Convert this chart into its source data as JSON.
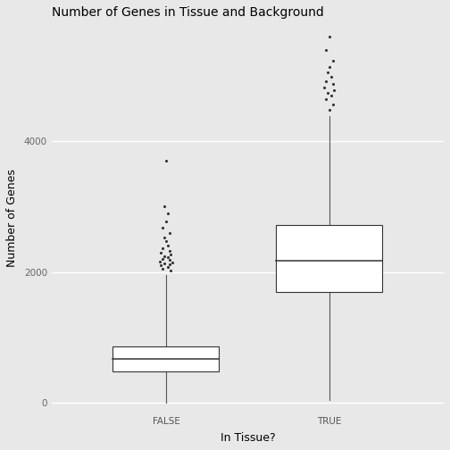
{
  "title": "Number of Genes in Tissue and Background",
  "xlabel": "In Tissue?",
  "ylabel": "Number of Genes",
  "categories": [
    "FALSE",
    "TRUE"
  ],
  "background_color": "#e8e8e8",
  "plot_bg_color": "#e8e8e8",
  "box_color": "white",
  "box_edge_color": "#333333",
  "median_color": "#333333",
  "whisker_color": "#555555",
  "outlier_color": "#333333",
  "grid_color": "white",
  "yticks": [
    0,
    2000,
    4000
  ],
  "ylim": [
    -150,
    5800
  ],
  "xlim": [
    0.3,
    2.7
  ],
  "false_box": {
    "q1": 480,
    "median": 670,
    "q3": 870,
    "whisker_low": 5,
    "whisker_high": 1950,
    "outliers_y": [
      2020,
      2050,
      2080,
      2100,
      2115,
      2130,
      2145,
      2165,
      2185,
      2205,
      2225,
      2245,
      2265,
      2290,
      2320,
      2360,
      2410,
      2470,
      2530,
      2600,
      2680,
      2780,
      2900,
      3000,
      3700
    ],
    "outliers_jitter": [
      0.03,
      -0.02,
      0.01,
      -0.03,
      0.02,
      -0.01,
      0.04,
      -0.04,
      0.02,
      -0.02,
      0.01,
      -0.01,
      0.03,
      -0.03,
      0.02,
      -0.02,
      0.01,
      0.0,
      -0.01,
      0.02,
      -0.02,
      0.0,
      0.01,
      -0.01,
      0.0
    ]
  },
  "true_box": {
    "q1": 1700,
    "median": 2180,
    "q3": 2720,
    "whisker_low": 50,
    "whisker_high": 4380,
    "outliers_y": [
      4480,
      4560,
      4640,
      4700,
      4740,
      4780,
      4820,
      4870,
      4920,
      4980,
      5050,
      5130,
      5230,
      5400,
      5600
    ],
    "outliers_jitter": [
      0.0,
      0.02,
      -0.02,
      0.01,
      -0.01,
      0.03,
      -0.03,
      0.02,
      -0.02,
      0.01,
      -0.01,
      0.0,
      0.02,
      -0.02,
      0.0
    ]
  },
  "box_width": 0.65,
  "linewidth": 0.8,
  "title_fontsize": 10,
  "axis_label_fontsize": 9,
  "tick_fontsize": 7.5
}
